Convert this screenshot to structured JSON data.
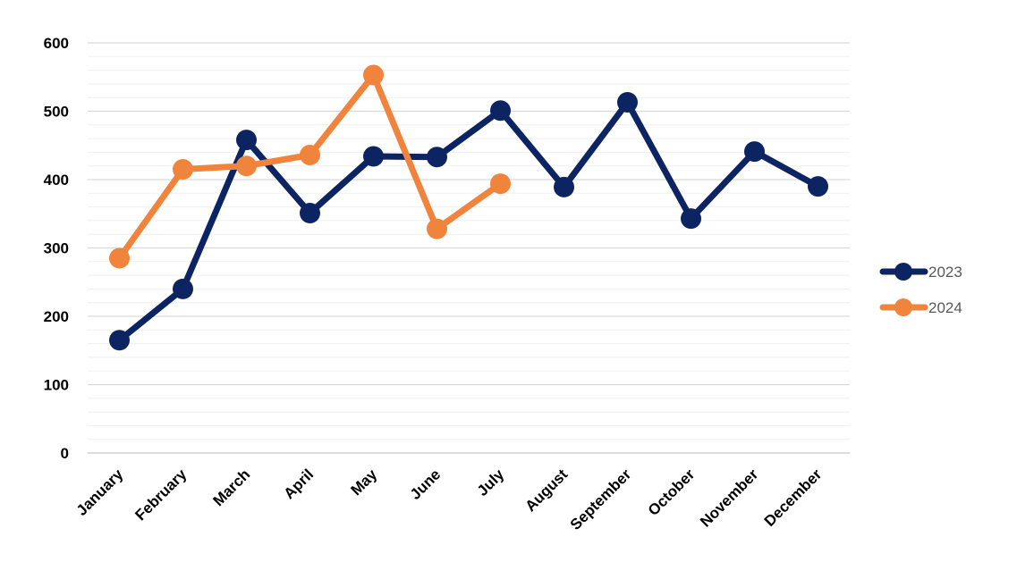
{
  "chart_data": {
    "type": "line",
    "categories": [
      "January",
      "February",
      "March",
      "April",
      "May",
      "June",
      "July",
      "August",
      "September",
      "October",
      "November",
      "December"
    ],
    "series": [
      {
        "name": "2023",
        "color": "#0d2463",
        "values": [
          165,
          240,
          458,
          351,
          434,
          433,
          501,
          389,
          513,
          343,
          441,
          390
        ]
      },
      {
        "name": "2024",
        "color": "#f0843c",
        "values": [
          285,
          415,
          420,
          436,
          553,
          328,
          394,
          null,
          null,
          null,
          null,
          null
        ]
      }
    ],
    "ylim": [
      0,
      600
    ],
    "yticks": [
      "0",
      "100",
      "200",
      "300",
      "400",
      "500",
      "600"
    ],
    "minor_step": 20,
    "grid": true,
    "legend_position": "right",
    "title": "",
    "xlabel": "",
    "ylabel": ""
  }
}
